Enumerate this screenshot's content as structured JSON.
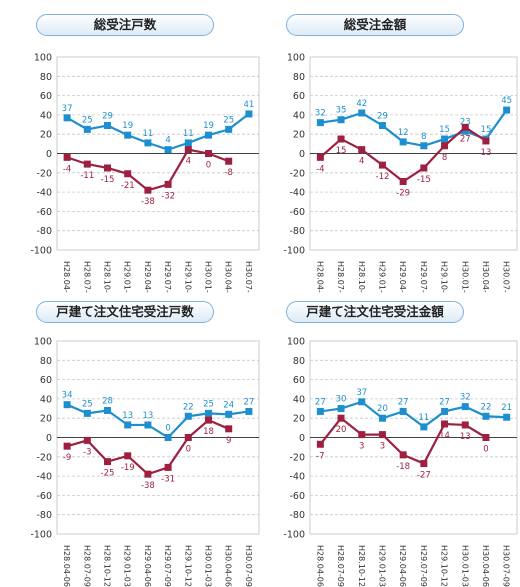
{
  "chart_data": [
    {
      "type": "line",
      "title": "総受注戸数",
      "categories": [
        "H28.04-06",
        "H28.07-09",
        "H28.10-12",
        "H29.01-03",
        "H29.04-06",
        "H29.07-09",
        "H29.10-12",
        "H30.01-03",
        "H30.04-06",
        "H30.07-09"
      ],
      "ylim": [
        -100,
        100
      ],
      "yticks": [
        100,
        80,
        60,
        40,
        20,
        0,
        -20,
        -40,
        -60,
        -80,
        -100
      ],
      "grid": "horizontal",
      "series": [
        {
          "color": "#1e8fce",
          "values": [
            37,
            25,
            29,
            19,
            11,
            4,
            11,
            19,
            25,
            41
          ]
        },
        {
          "color": "#9e2040",
          "values": [
            -4,
            -11,
            -15,
            -21,
            -38,
            -32,
            4,
            0,
            -8,
            null
          ]
        }
      ]
    },
    {
      "type": "line",
      "title": "総受注金額",
      "categories": [
        "H28.04-06",
        "H28.07-09",
        "H28.10-12",
        "H29.01-03",
        "H29.04-06",
        "H29.07-09",
        "H29.10-12",
        "H30.01-03",
        "H30.04-06",
        "H30.07-09"
      ],
      "ylim": [
        -100,
        100
      ],
      "yticks": [
        100,
        80,
        60,
        40,
        20,
        0,
        -20,
        -40,
        -60,
        -80,
        -100
      ],
      "grid": "horizontal",
      "series": [
        {
          "color": "#1e8fce",
          "values": [
            32,
            35,
            42,
            29,
            12,
            8,
            15,
            23,
            15,
            45
          ]
        },
        {
          "color": "#9e2040",
          "values": [
            -4,
            15,
            4,
            -12,
            -29,
            -15,
            8,
            27,
            13,
            null
          ]
        }
      ]
    },
    {
      "type": "line",
      "title": "戸建て注文住宅受注戸数",
      "categories": [
        "H28.04-06",
        "H28.07-09",
        "H28.10-12",
        "H29.01-03",
        "H29.04-06",
        "H29.07-09",
        "H29.10-12",
        "H30.01-03",
        "H30.04-06",
        "H30.07-09"
      ],
      "ylim": [
        -100,
        100
      ],
      "yticks": [
        100,
        80,
        60,
        40,
        20,
        0,
        -20,
        -40,
        -60,
        -80,
        -100
      ],
      "grid": "horizontal",
      "series": [
        {
          "color": "#1e8fce",
          "values": [
            34,
            25,
            28,
            13,
            13,
            0,
            22,
            25,
            24,
            27
          ]
        },
        {
          "color": "#9e2040",
          "values": [
            -9,
            -3,
            -25,
            -19,
            -38,
            -31,
            0,
            18,
            9,
            null
          ]
        }
      ]
    },
    {
      "type": "line",
      "title": "戸建て注文住宅受注金額",
      "categories": [
        "H28.04-06",
        "H28.07-09",
        "H28.10-12",
        "H29.01-03",
        "H29.04-06",
        "H29.07-09",
        "H29.10-12",
        "H30.01-03",
        "H30.04-06",
        "H30.07-09"
      ],
      "ylim": [
        -100,
        100
      ],
      "yticks": [
        100,
        80,
        60,
        40,
        20,
        0,
        -20,
        -40,
        -60,
        -80,
        -100
      ],
      "grid": "horizontal",
      "series": [
        {
          "color": "#1e8fce",
          "values": [
            27,
            30,
            37,
            20,
            27,
            11,
            27,
            32,
            22,
            21
          ]
        },
        {
          "color": "#9e2040",
          "values": [
            -7,
            20,
            3,
            3,
            -18,
            -27,
            14,
            13,
            0,
            null
          ]
        }
      ]
    }
  ]
}
